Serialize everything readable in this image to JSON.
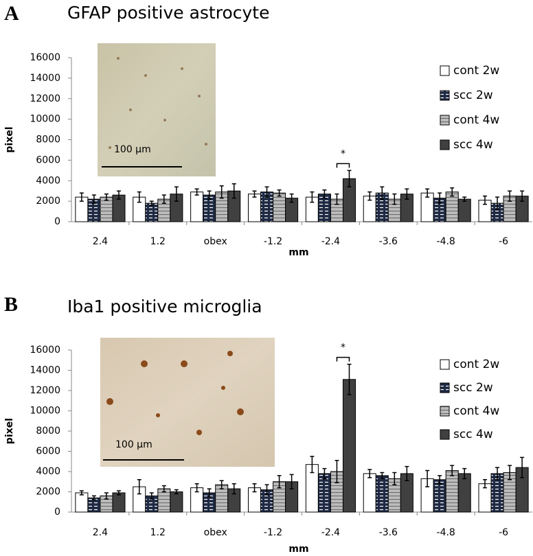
{
  "chart_data": [
    {
      "type": "bar",
      "panel": "A",
      "title": "GFAP positive astrocyte",
      "xlabel": "mm",
      "ylabel": "pixel",
      "categories": [
        "2.4",
        "1.2",
        "obex",
        "-1.2",
        "-2.4",
        "-3.6",
        "-4.8",
        "-6"
      ],
      "series": [
        {
          "name": "cont 2w",
          "color": "#ffffff",
          "values": [
            2400,
            2400,
            2900,
            2700,
            2400,
            2500,
            2800,
            2100
          ],
          "errors": [
            400,
            500,
            300,
            300,
            500,
            400,
            400,
            400
          ]
        },
        {
          "name": "scc 2w",
          "color": "#1f2a44",
          "hatch": "dash",
          "values": [
            2200,
            1800,
            2600,
            2900,
            2700,
            2800,
            2300,
            1800
          ],
          "errors": [
            400,
            200,
            400,
            500,
            400,
            600,
            500,
            600
          ]
        },
        {
          "name": "cont 4w",
          "color": "#bdbdbd",
          "hatch": "stripe",
          "values": [
            2400,
            2200,
            2900,
            2800,
            2200,
            2200,
            2900,
            2500
          ],
          "errors": [
            300,
            400,
            600,
            300,
            500,
            500,
            400,
            500
          ]
        },
        {
          "name": "scc 4w",
          "color": "#404040",
          "values": [
            2600,
            2700,
            3000,
            2300,
            4200,
            2700,
            2200,
            2500
          ],
          "errors": [
            400,
            700,
            700,
            400,
            800,
            500,
            200,
            500
          ]
        }
      ],
      "ylim": [
        0,
        16000
      ],
      "yticks": [
        0,
        2000,
        4000,
        6000,
        8000,
        10000,
        12000,
        14000,
        16000
      ],
      "annotation": {
        "text": "*",
        "category": "-2.4"
      },
      "scale_bar": "100 µm",
      "legend": "right"
    },
    {
      "type": "bar",
      "panel": "B",
      "title": "Iba1 positive microglia",
      "xlabel": "mm",
      "ylabel": "pixel",
      "categories": [
        "2.4",
        "1.2",
        "obex",
        "-1.2",
        "-2.4",
        "-3.6",
        "-4.8",
        "-6"
      ],
      "series": [
        {
          "name": "cont 2w",
          "color": "#ffffff",
          "values": [
            1900,
            2500,
            2400,
            2400,
            4700,
            3800,
            3300,
            2800
          ],
          "errors": [
            200,
            700,
            400,
            400,
            800,
            400,
            800,
            400
          ]
        },
        {
          "name": "scc 2w",
          "color": "#1f2a44",
          "hatch": "dash",
          "values": [
            1400,
            1600,
            1900,
            2200,
            3800,
            3600,
            3200,
            3800
          ],
          "errors": [
            200,
            300,
            400,
            500,
            500,
            300,
            400,
            600
          ]
        },
        {
          "name": "cont 4w",
          "color": "#bdbdbd",
          "hatch": "stripe",
          "values": [
            1600,
            2300,
            2700,
            3000,
            4000,
            3300,
            4100,
            3900
          ],
          "errors": [
            300,
            300,
            400,
            600,
            1100,
            600,
            500,
            700
          ]
        },
        {
          "name": "scc 4w",
          "color": "#404040",
          "values": [
            1900,
            2000,
            2300,
            3000,
            13100,
            3800,
            3800,
            4400
          ],
          "errors": [
            200,
            200,
            500,
            700,
            1500,
            700,
            500,
            1000
          ]
        }
      ],
      "ylim": [
        0,
        16000
      ],
      "yticks": [
        0,
        2000,
        4000,
        6000,
        8000,
        10000,
        12000,
        14000,
        16000
      ],
      "annotation": {
        "text": "*",
        "category": "-2.4"
      },
      "scale_bar": "100 µm",
      "legend": "right"
    }
  ]
}
